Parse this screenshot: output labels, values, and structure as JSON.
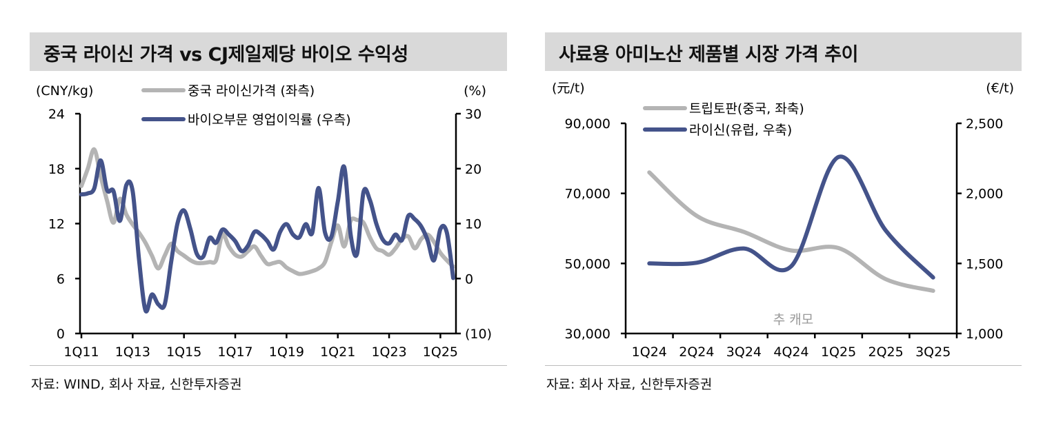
{
  "colors": {
    "grey_series": "#b4b4b4",
    "blue_series": "#44538a",
    "title_bg": "#d9d9d9"
  },
  "left_panel": {
    "title": "중국 라이신 가격 vs CJ제일제당 바이오 수익성",
    "source": "자료: WIND, 회사 자료, 신한투자증권"
  },
  "right_panel": {
    "title": "사료용 아미노산 제품별 시장 가격 추이",
    "source": "자료: 회사 자료, 신한투자증권",
    "watermark": "추 캐모"
  },
  "chart_data": [
    {
      "type": "line",
      "y_left_unit": "(CNY/kg)",
      "y_right_unit": "(%)",
      "y_left_ticks": [
        "0",
        "6",
        "12",
        "18",
        "24"
      ],
      "y_left_lim": [
        0,
        24
      ],
      "y_right_ticks": [
        "(10)",
        "0",
        "10",
        "20",
        "30"
      ],
      "y_right_lim": [
        -10,
        30
      ],
      "x_tick_labels": [
        "1Q11",
        "1Q13",
        "1Q15",
        "1Q17",
        "1Q19",
        "1Q21",
        "1Q23",
        "1Q25"
      ],
      "x_frequency": "quarterly",
      "x_start": "1Q11",
      "x_end": "3Q25",
      "grid": false,
      "legend_placement": "top-center",
      "series": [
        {
          "name": "중국 라이신가격 (좌측)",
          "axis": "left",
          "color": "#b4b4b4",
          "values": [
            16.1,
            18,
            20.1,
            17.2,
            14.5,
            12.1,
            14.7,
            13,
            11.9,
            11,
            9.9,
            8.5,
            7.1,
            8.5,
            9.8,
            9,
            8.5,
            8,
            7.7,
            7.7,
            7.8,
            8,
            10.8,
            9.5,
            8.6,
            8.4,
            9,
            9.5,
            8.5,
            7.6,
            7.7,
            7.8,
            7.2,
            6.8,
            6.5,
            6.6,
            6.8,
            7.1,
            7.8,
            10,
            11.8,
            9.5,
            12.3,
            12.4,
            12.1,
            10.5,
            9.3,
            9,
            8.6,
            9.3,
            10.3,
            10.6,
            9.3,
            10.3,
            10.8,
            10,
            8.8,
            8,
            7.3
          ]
        },
        {
          "name": "바이오부문 영업이익률 (우측)",
          "axis": "right",
          "color": "#44538a",
          "values": [
            15.3,
            15.5,
            16.4,
            21.5,
            16.1,
            15.9,
            10.5,
            17,
            15.9,
            3.4,
            -5.8,
            -2.9,
            -4.7,
            -4.7,
            3,
            10.1,
            12.4,
            9,
            4.5,
            4,
            7.4,
            6.5,
            8.9,
            8,
            6.8,
            5,
            6,
            8.5,
            8,
            6.8,
            5.3,
            8.5,
            9.9,
            8,
            7.5,
            9.9,
            8.3,
            16.5,
            8.4,
            7.6,
            14,
            20.3,
            8,
            4.5,
            15.7,
            14.3,
            10,
            7.1,
            6.4,
            8,
            7,
            11.4,
            10.8,
            9.5,
            7,
            3.3,
            9,
            8.4,
            0.1
          ]
        }
      ]
    },
    {
      "type": "line",
      "y_left_unit": "(元/t)",
      "y_right_unit": "(€/t)",
      "y_left_ticks": [
        "30,000",
        "50,000",
        "70,000",
        "90,000"
      ],
      "y_left_lim": [
        30000,
        90000
      ],
      "y_right_ticks": [
        "1,000",
        "1,500",
        "2,000",
        "2,500"
      ],
      "y_right_lim": [
        1000,
        2500
      ],
      "categories": [
        "1Q24",
        "2Q24",
        "3Q24",
        "4Q24",
        "1Q25",
        "2Q25",
        "3Q25"
      ],
      "grid": false,
      "legend_placement": "top-left",
      "series": [
        {
          "name": "트립토판(중국, 좌축)",
          "axis": "left",
          "color": "#b4b4b4",
          "values": [
            76000,
            63600,
            59000,
            53700,
            54400,
            45500,
            42200
          ]
        },
        {
          "name": "라이신(유럽, 우축)",
          "axis": "right",
          "color": "#44538a",
          "values": [
            1500,
            1505,
            1607,
            1480,
            2260,
            1735,
            1400
          ]
        }
      ]
    }
  ]
}
